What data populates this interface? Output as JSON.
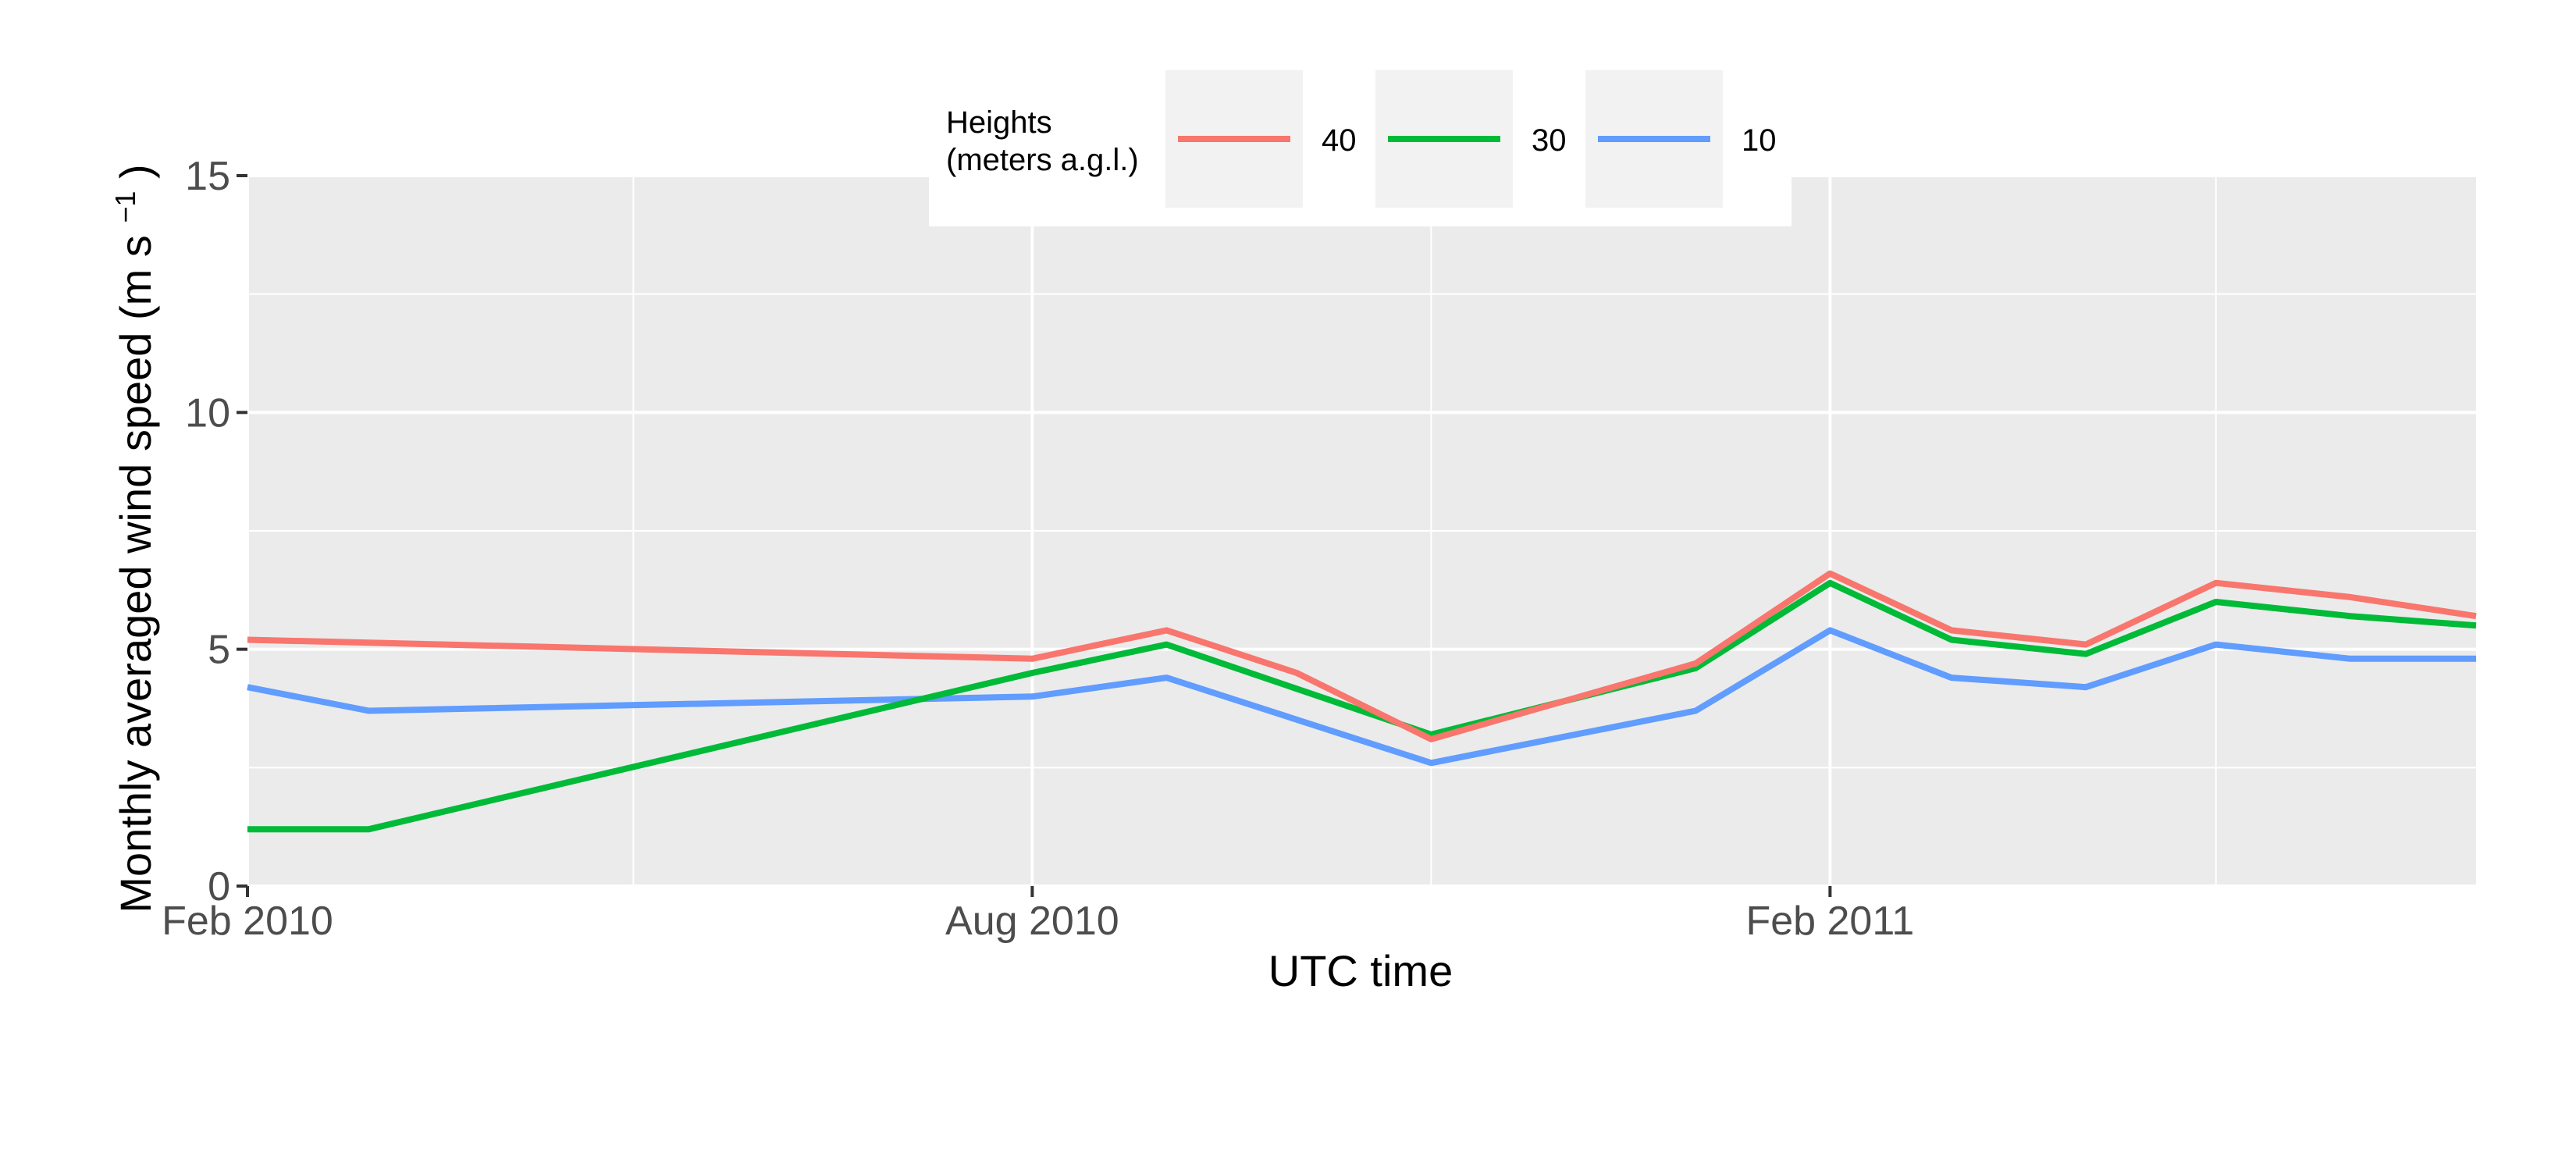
{
  "chart_data": {
    "type": "line",
    "xlabel": "UTC time",
    "ylabel_main": "Monthly averaged wind speed (m s",
    "ylabel_sup": "−1",
    "ylabel_close": ")",
    "ylim": [
      0,
      15
    ],
    "xlim": [
      "2010-02-01",
      "2011-06-30"
    ],
    "y_ticks": [
      0,
      5,
      10,
      15
    ],
    "x_ticks": [
      {
        "date": "2010-02-01",
        "label": "Feb 2010"
      },
      {
        "date": "2010-08-01",
        "label": "Aug 2010"
      },
      {
        "date": "2011-02-01",
        "label": "Feb 2011"
      }
    ],
    "x_minor_ticks": [
      "2010-05-01",
      "2010-11-01",
      "2011-05-01"
    ],
    "grid": true,
    "legend": {
      "title_line1": "Heights",
      "title_line2": "(meters a.g.l.)",
      "placement": "top"
    },
    "series": [
      {
        "name": "40",
        "color": "#F8766D",
        "x": [
          "2010-02-01",
          "2010-08-01",
          "2010-09-01",
          "2010-10-01",
          "2010-11-01",
          "2011-01-01",
          "2011-02-01",
          "2011-03-01",
          "2011-04-01",
          "2011-05-01",
          "2011-06-01",
          "2011-06-30"
        ],
        "y": [
          5.2,
          4.8,
          5.4,
          4.5,
          3.1,
          4.7,
          6.6,
          5.4,
          5.1,
          6.4,
          6.1,
          5.7
        ]
      },
      {
        "name": "30",
        "color": "#00BA38",
        "x": [
          "2010-02-01",
          "2010-03-01",
          "2010-08-01",
          "2010-09-01",
          "2010-11-01",
          "2011-01-01",
          "2011-02-01",
          "2011-03-01",
          "2011-04-01",
          "2011-05-01",
          "2011-06-01",
          "2011-06-30"
        ],
        "y": [
          1.2,
          1.2,
          4.5,
          5.1,
          3.2,
          4.6,
          6.4,
          5.2,
          4.9,
          6.0,
          5.7,
          5.5
        ]
      },
      {
        "name": "10",
        "color": "#619CFF",
        "x": [
          "2010-02-01",
          "2010-03-01",
          "2010-08-01",
          "2010-09-01",
          "2010-11-01",
          "2011-01-01",
          "2011-02-01",
          "2011-03-01",
          "2011-04-01",
          "2011-05-01",
          "2011-06-01",
          "2011-06-30"
        ],
        "y": [
          4.2,
          3.7,
          4.0,
          4.4,
          2.6,
          3.7,
          5.4,
          4.4,
          4.2,
          5.1,
          4.8,
          4.8
        ]
      }
    ]
  }
}
